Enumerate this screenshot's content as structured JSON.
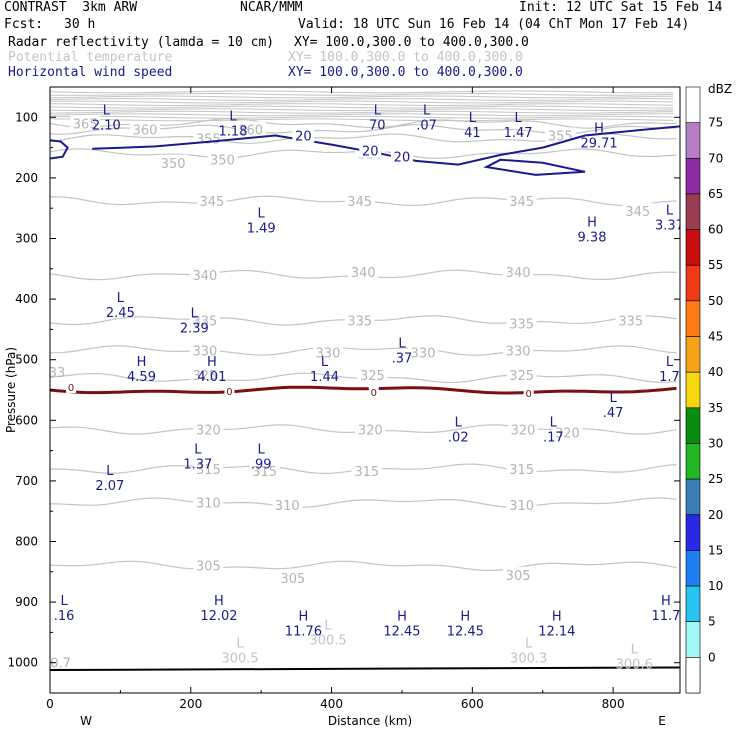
{
  "header": {
    "model": "CONTRAST  3km ARW",
    "org": "NCAR/MMM",
    "init": "Init: 12 UTC Sat 15 Feb 14",
    "fcst_label": "Fcst:",
    "fcst_value": "30 h",
    "valid": "Valid: 18 UTC Sun 16 Feb 14 (04 ChT Mon 17 Feb 14)",
    "fields": [
      {
        "name": "Radar reflectivity (lamda = 10 cm)",
        "xy": "XY= 100.0,300.0 to 400.0,300.0",
        "color": "#000000"
      },
      {
        "name": "Potential temperature",
        "xy": "XY= 100.0,300.0 to 400.0,300.0",
        "color": "#c4c4c4"
      },
      {
        "name": "Horizontal wind speed",
        "xy": "XY= 100.0,300.0 to 400.0,300.0",
        "color": "#1a1a8c"
      }
    ]
  },
  "chart_data": {
    "type": "cross-section contour",
    "xlabel": "Distance (km)",
    "ylabel": "Pressure (hPa)",
    "xlim": [
      0,
      895
    ],
    "ylim": [
      1050,
      50
    ],
    "x_ticks": [
      0,
      200,
      400,
      600,
      800
    ],
    "y_ticks": [
      100,
      200,
      300,
      400,
      500,
      600,
      700,
      800,
      900,
      1000
    ],
    "x_end_labels": {
      "left": "W",
      "right": "E"
    },
    "colorbar": {
      "unit": "dBZ",
      "levels": [
        0,
        5,
        10,
        15,
        20,
        25,
        30,
        35,
        40,
        45,
        50,
        55,
        60,
        65,
        70,
        75
      ],
      "colors": [
        "#ffffff",
        "#9ff7f7",
        "#27c4f0",
        "#1f7ff0",
        "#2929e6",
        "#3a7fb4",
        "#23b823",
        "#0c8c0c",
        "#f5d60f",
        "#f5a218",
        "#fa7b14",
        "#ee3a16",
        "#c80e0e",
        "#9c3c50",
        "#8c2ca4",
        "#b47dc4"
      ]
    },
    "theta_contours": [
      {
        "value": "365",
        "p": 110,
        "labels": [
          [
            50,
            110
          ]
        ]
      },
      {
        "value": "360",
        "p": 120,
        "labels": [
          [
            135,
            120
          ],
          [
            285,
            120
          ]
        ]
      },
      {
        "value": "355",
        "p": 135,
        "labels": [
          [
            225,
            135
          ],
          [
            725,
            130
          ]
        ]
      },
      {
        "value": "350",
        "p": 160,
        "labels": [
          [
            175,
            175
          ],
          [
            245,
            170
          ],
          [
            455,
            160
          ]
        ]
      },
      {
        "value": "345",
        "p": 238,
        "labels": [
          [
            230,
            238
          ],
          [
            440,
            238
          ],
          [
            670,
            238
          ],
          [
            835,
            255
          ]
        ]
      },
      {
        "value": "340",
        "p": 360,
        "labels": [
          [
            220,
            360
          ],
          [
            445,
            355
          ],
          [
            665,
            355
          ]
        ]
      },
      {
        "value": "335",
        "p": 435,
        "labels": [
          [
            220,
            435
          ],
          [
            440,
            435
          ],
          [
            670,
            440
          ],
          [
            825,
            435
          ]
        ]
      },
      {
        "value": "330",
        "p": 485,
        "labels": [
          [
            220,
            485
          ],
          [
            395,
            488
          ],
          [
            530,
            488
          ],
          [
            665,
            485
          ]
        ]
      },
      {
        "value": "325",
        "p": 530,
        "labels": [
          [
            220,
            525
          ],
          [
            458,
            525
          ],
          [
            670,
            525
          ]
        ]
      },
      {
        "value": "320",
        "p": 615,
        "labels": [
          [
            225,
            615
          ],
          [
            455,
            615
          ],
          [
            672,
            615
          ],
          [
            735,
            620
          ]
        ]
      },
      {
        "value": "315",
        "p": 680,
        "labels": [
          [
            225,
            680
          ],
          [
            305,
            684
          ],
          [
            450,
            684
          ],
          [
            670,
            680
          ]
        ]
      },
      {
        "value": "310",
        "p": 736,
        "labels": [
          [
            225,
            736
          ],
          [
            337,
            740
          ],
          [
            670,
            740
          ]
        ]
      },
      {
        "value": "305",
        "p": 840,
        "labels": [
          [
            225,
            840
          ],
          [
            345,
            860
          ],
          [
            665,
            855
          ]
        ]
      }
    ],
    "extra_theta_labels": [
      {
        "text": "33",
        "x": 10,
        "p": 520
      },
      {
        "text": "0.7",
        "x": 15,
        "p": 1000
      }
    ],
    "wind_contours": [
      {
        "value": "20",
        "labels": [
          [
            360,
            130
          ],
          [
            455,
            155
          ],
          [
            500,
            165
          ]
        ]
      }
    ],
    "reflectivity_zero_line": {
      "value": "0",
      "p": 550,
      "labels": [
        [
          30,
          545
        ],
        [
          255,
          552
        ],
        [
          460,
          553
        ],
        [
          680,
          555
        ]
      ]
    },
    "extrema": [
      {
        "type": "L",
        "value": "2.10",
        "x": 80,
        "p": 95,
        "color": "#1a1a8c"
      },
      {
        "type": "L",
        "value": "1.18",
        "x": 260,
        "p": 105,
        "color": "#1a1a8c"
      },
      {
        "type": "L",
        "value": "70",
        "x": 465,
        "p": 95,
        "color": "#1a1a8c"
      },
      {
        "type": "L",
        "value": ".07",
        "x": 535,
        "p": 95,
        "color": "#1a1a8c"
      },
      {
        "type": "L",
        "value": "41",
        "x": 600,
        "p": 108,
        "color": "#1a1a8c"
      },
      {
        "type": "L",
        "value": "1.47",
        "x": 665,
        "p": 108,
        "color": "#1a1a8c"
      },
      {
        "type": "H",
        "value": "29.71",
        "x": 780,
        "p": 125,
        "color": "#1a1a8c"
      },
      {
        "type": "L",
        "value": "1.49",
        "x": 300,
        "p": 265,
        "color": "#1a1a8c"
      },
      {
        "type": "H",
        "value": "9.38",
        "x": 770,
        "p": 280,
        "color": "#1a1a8c"
      },
      {
        "type": "L",
        "value": "3.37",
        "x": 880,
        "p": 260,
        "color": "#1a1a8c"
      },
      {
        "type": "L",
        "value": "2.45",
        "x": 100,
        "p": 405,
        "color": "#1a1a8c"
      },
      {
        "type": "L",
        "value": "2.39",
        "x": 205,
        "p": 430,
        "color": "#1a1a8c"
      },
      {
        "type": "L",
        "value": ".37",
        "x": 500,
        "p": 480,
        "color": "#1a1a8c"
      },
      {
        "type": "H",
        "value": "4.59",
        "x": 130,
        "p": 510,
        "color": "#1a1a8c"
      },
      {
        "type": "H",
        "value": "4.01",
        "x": 230,
        "p": 510,
        "color": "#1a1a8c"
      },
      {
        "type": "L",
        "value": "1.44",
        "x": 390,
        "p": 510,
        "color": "#1a1a8c"
      },
      {
        "type": "L",
        "value": "1.7",
        "x": 880,
        "p": 510,
        "color": "#1a1a8c"
      },
      {
        "type": "L",
        "value": ".47",
        "x": 800,
        "p": 570,
        "color": "#1a1a8c"
      },
      {
        "type": "L",
        "value": ".02",
        "x": 580,
        "p": 610,
        "color": "#1a1a8c"
      },
      {
        "type": "L",
        "value": ".17",
        "x": 715,
        "p": 610,
        "color": "#1a1a8c"
      },
      {
        "type": "L",
        "value": "1.37",
        "x": 210,
        "p": 655,
        "color": "#1a1a8c"
      },
      {
        "type": "L",
        "value": ".99",
        "x": 300,
        "p": 655,
        "color": "#1a1a8c"
      },
      {
        "type": "L",
        "value": "2.07",
        "x": 85,
        "p": 690,
        "color": "#1a1a8c"
      },
      {
        "type": "L",
        "value": ".16",
        "x": 20,
        "p": 905,
        "color": "#1a1a8c"
      },
      {
        "type": "H",
        "value": "12.02",
        "x": 240,
        "p": 905,
        "color": "#1a1a8c"
      },
      {
        "type": "H",
        "value": "11.76",
        "x": 360,
        "p": 930,
        "color": "#1a1a8c"
      },
      {
        "type": "H",
        "value": "12.45",
        "x": 500,
        "p": 930,
        "color": "#1a1a8c"
      },
      {
        "type": "H",
        "value": "12.45",
        "x": 590,
        "p": 930,
        "color": "#1a1a8c"
      },
      {
        "type": "H",
        "value": "12.14",
        "x": 720,
        "p": 930,
        "color": "#1a1a8c"
      },
      {
        "type": "H",
        "value": "11.7",
        "x": 875,
        "p": 905,
        "color": "#1a1a8c"
      },
      {
        "type": "L",
        "value": "300.5",
        "x": 395,
        "p": 945,
        "color": "#c4c4c4"
      },
      {
        "type": "L",
        "value": "300.5",
        "x": 270,
        "p": 975,
        "color": "#c4c4c4"
      },
      {
        "type": "L",
        "value": "300.3",
        "x": 680,
        "p": 975,
        "color": "#c4c4c4"
      },
      {
        "type": "L",
        "value": "300.6",
        "x": 830,
        "p": 985,
        "color": "#c4c4c4"
      }
    ]
  }
}
